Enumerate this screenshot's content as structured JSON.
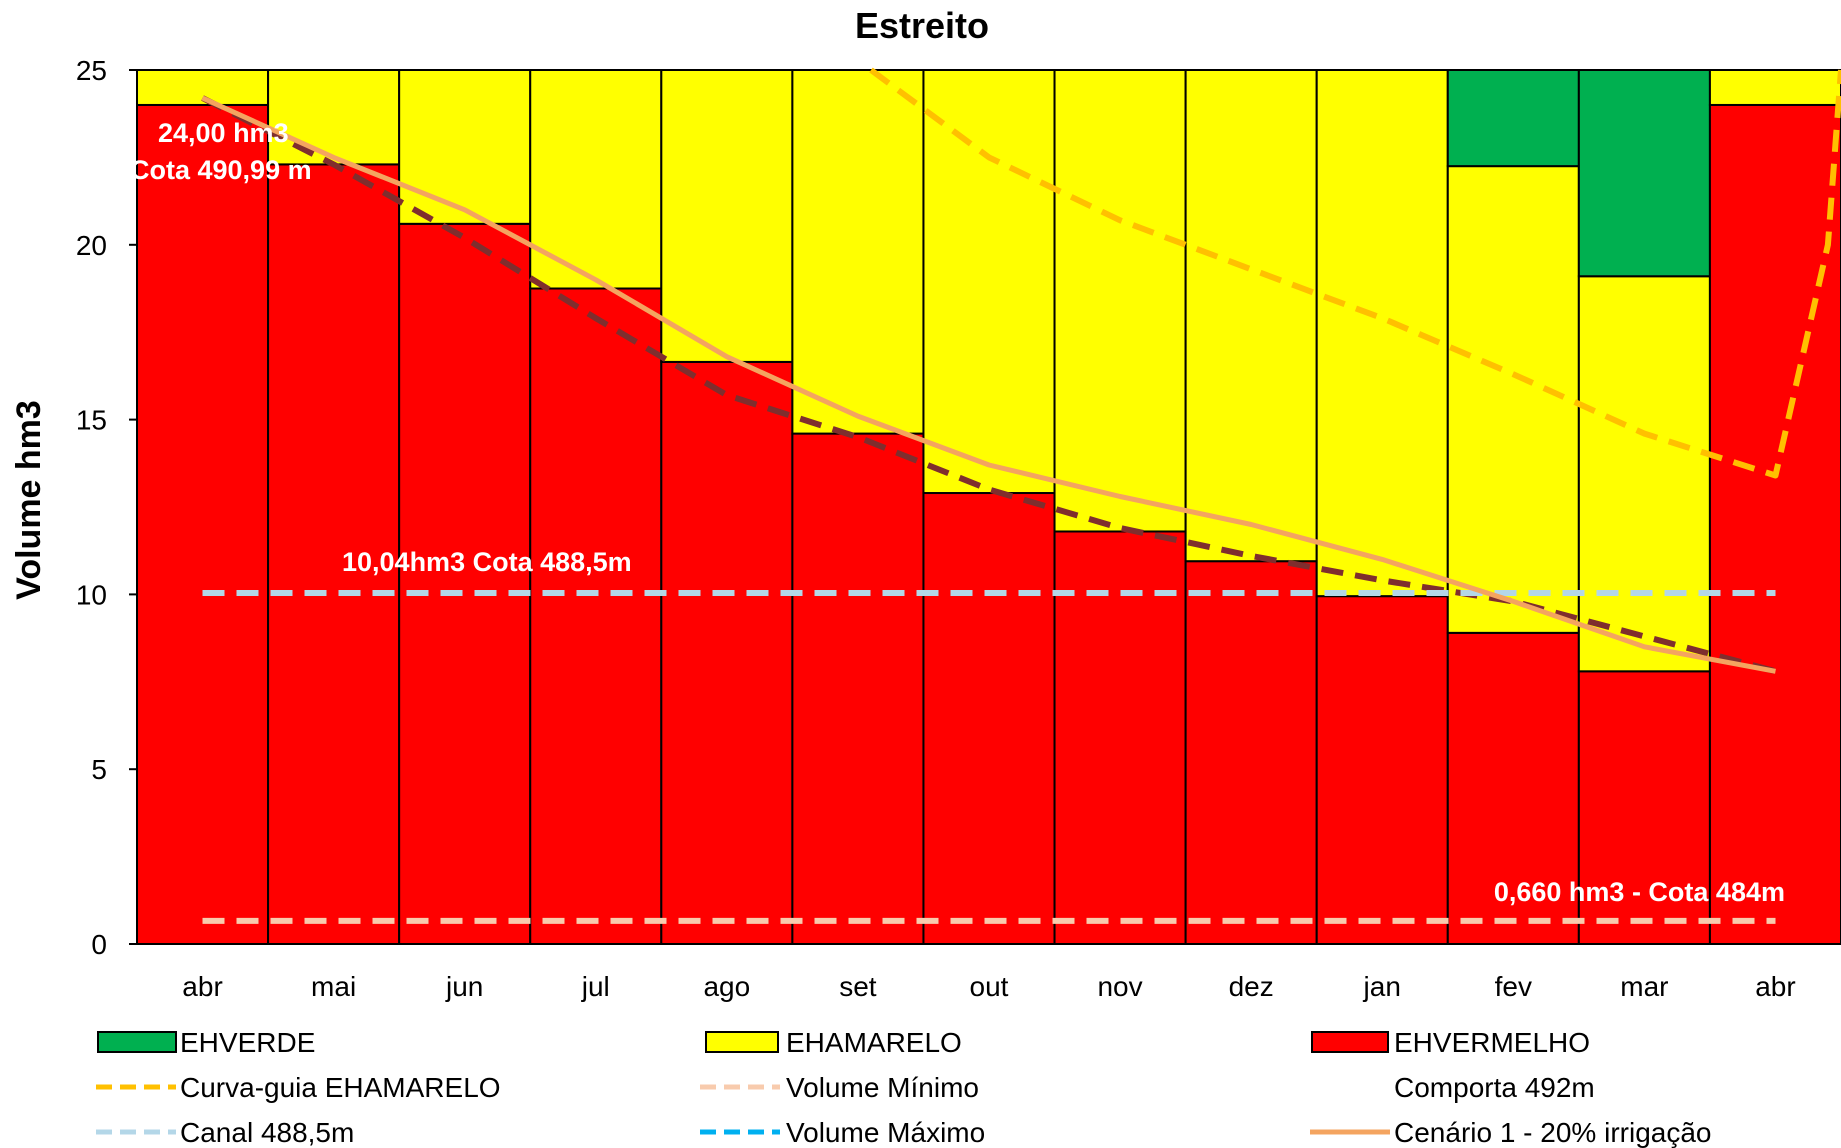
{
  "chart_data": {
    "type": "bar",
    "title": "Estreito",
    "xlabel": "",
    "ylabel": "Volume hm3",
    "ylim": [
      0,
      25
    ],
    "yticks": [
      0,
      5,
      10,
      15,
      20,
      25
    ],
    "stacked": true,
    "grid": false,
    "legend_position": "bottom",
    "categories": [
      "abr",
      "mai",
      "jun",
      "jul",
      "ago",
      "set",
      "out",
      "nov",
      "dez",
      "jan",
      "fev",
      "mar",
      "abr"
    ],
    "series": [
      {
        "name": "EHVERMELHO",
        "kind": "bar",
        "color": "#ff0000",
        "values": [
          24.0,
          22.3,
          20.6,
          18.75,
          16.65,
          14.6,
          12.9,
          11.8,
          10.95,
          9.95,
          8.9,
          7.8,
          24.0
        ]
      },
      {
        "name": "EHAMARELO",
        "kind": "bar",
        "color": "#ffff00",
        "values": [
          1.0,
          2.7,
          4.4,
          6.25,
          8.35,
          10.4,
          12.1,
          13.2,
          14.05,
          15.05,
          13.35,
          11.3,
          1.0
        ]
      },
      {
        "name": "EHVERDE",
        "kind": "bar",
        "color": "#00b050",
        "values": [
          0,
          0,
          0,
          0,
          0,
          0,
          0,
          0,
          0,
          0,
          2.75,
          5.9,
          0
        ]
      },
      {
        "name": "Curva-guia  EHAMARELO",
        "kind": "line",
        "style": "dashed",
        "color": "#ffc000",
        "x": [
          5.1,
          6,
          7,
          8,
          9,
          10,
          11,
          12,
          12.4,
          12.5
        ],
        "y": [
          25.0,
          22.5,
          20.7,
          19.3,
          17.9,
          16.3,
          14.6,
          13.4,
          20.0,
          25.0
        ]
      },
      {
        "name": "Volume Mínimo",
        "kind": "line",
        "style": "dashed",
        "color": "#f8cbad",
        "x": [
          0,
          12
        ],
        "y": [
          0.66,
          0.66
        ]
      },
      {
        "name": "Comporta 492m",
        "kind": "line",
        "style": "dashed",
        "color": "#7f2e2e",
        "x": [
          0,
          1,
          2,
          3,
          4,
          5,
          6,
          7,
          8,
          9,
          10,
          11,
          12
        ],
        "y": [
          24.2,
          22.3,
          20.2,
          17.9,
          15.7,
          14.5,
          13.0,
          11.9,
          11.1,
          10.4,
          9.8,
          8.8,
          7.8
        ]
      },
      {
        "name": "Canal 488,5m",
        "kind": "line",
        "style": "dashed",
        "color": "#b4d7e8",
        "x": [
          0,
          12
        ],
        "y": [
          10.04,
          10.04
        ]
      },
      {
        "name": "Volume Máximo",
        "kind": "line",
        "style": "dashed",
        "color": "#00b0f0",
        "x": [],
        "y": []
      },
      {
        "name": "Cenário 1 - 20% irrigação",
        "kind": "line",
        "style": "solid",
        "color": "#f4a460",
        "x": [
          0,
          1,
          2,
          3,
          4,
          5,
          6,
          7,
          8,
          9,
          10,
          11,
          12
        ],
        "y": [
          24.2,
          22.5,
          21.0,
          19.0,
          16.8,
          15.1,
          13.7,
          12.8,
          12.0,
          11.0,
          9.8,
          8.5,
          7.8
        ]
      }
    ],
    "annotations": [
      "24,00 hm3",
      "Cota 490,99 m",
      "10,04hm3 Cota 488,5m",
      "0,660 hm3 - Cota 484m"
    ],
    "legend": [
      "EHVERDE",
      "EHAMARELO",
      "EHVERMELHO",
      "Curva-guia  EHAMARELO",
      "Volume Mínimo",
      "Comporta 492m",
      "Canal 488,5m",
      "Volume Máximo",
      "Cenário 1 - 20% irrigação"
    ]
  }
}
